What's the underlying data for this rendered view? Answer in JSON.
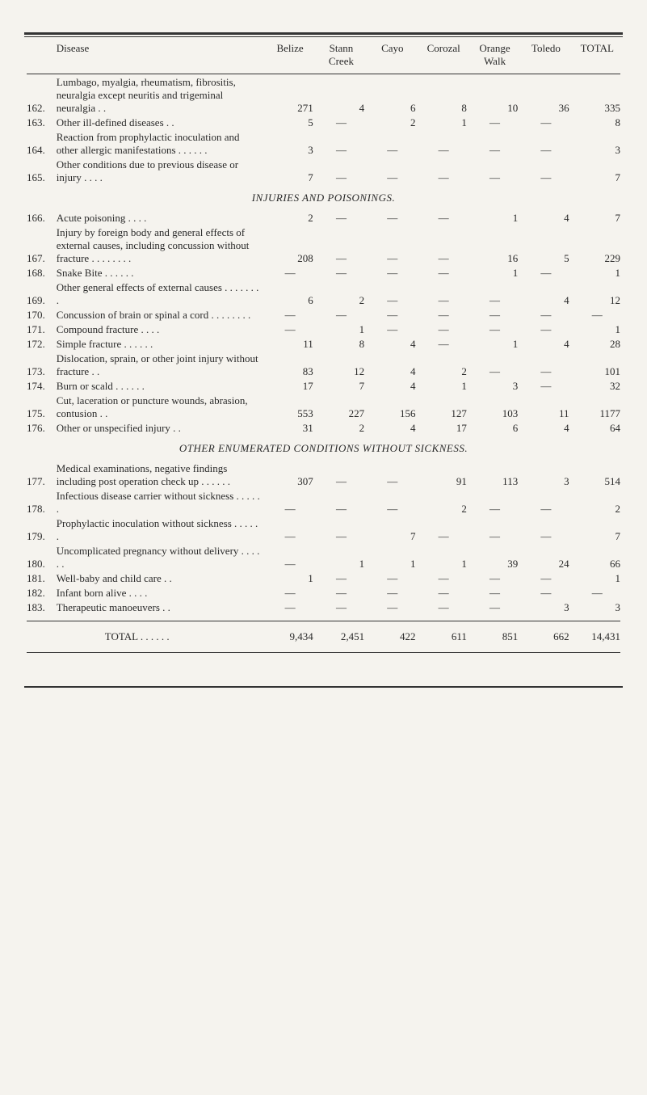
{
  "header": {
    "disease": "Disease",
    "belize": "Belize",
    "stann": "Stann Creek",
    "cayo": "Cayo",
    "corozal": "Corozal",
    "orange": "Orange Walk",
    "toledo": "Toledo",
    "total": "TOTAL"
  },
  "sections": {
    "injuries": "INJURIES AND POISONINGS.",
    "other": "OTHER ENUMERATED CONDITIONS WITHOUT SICKNESS."
  },
  "rows": [
    {
      "n": "162.",
      "d": "Lumbago, myalgia, rheumatism, fibrositis, neuralgia except neuritis and trigeminal neuralgia  . .",
      "v": [
        "271",
        "4",
        "6",
        "8",
        "10",
        "36",
        "335"
      ]
    },
    {
      "n": "163.",
      "d": "Other ill-defined diseases      . .",
      "v": [
        "5",
        "—",
        "2",
        "1",
        "—",
        "—",
        "8"
      ]
    },
    {
      "n": "164.",
      "d": "Reaction from prophylactic inoculation and other allergic manifestations        . .      . .      . .",
      "v": [
        "3",
        "—",
        "—",
        "—",
        "—",
        "—",
        "3"
      ]
    },
    {
      "n": "165.",
      "d": "Other conditions due to previous disease or injury        . .     . .",
      "v": [
        "7",
        "—",
        "—",
        "—",
        "—",
        "—",
        "7"
      ]
    },
    {
      "n": "166.",
      "d": "Acute poisoning        . .     . .",
      "v": [
        "2",
        "—",
        "—",
        "—",
        "1",
        "4",
        "7"
      ]
    },
    {
      "n": "167.",
      "d": "Injury by foreign body and general effects of external causes, including concussion without fracture . .     . .     . .     . .",
      "v": [
        "208",
        "—",
        "—",
        "—",
        "16",
        "5",
        "229"
      ]
    },
    {
      "n": "168.",
      "d": "Snake Bite        . .     . .     . .",
      "v": [
        "—",
        "—",
        "—",
        "—",
        "1",
        "—",
        "1"
      ]
    },
    {
      "n": "169.",
      "d": "Other general effects of external causes    . .     . .     . .     . .",
      "v": [
        "6",
        "2",
        "—",
        "—",
        "—",
        "4",
        "12"
      ]
    },
    {
      "n": "170.",
      "d": "Concussion of brain or spinal      a cord        . .     . .     . .     . .",
      "v": [
        "—",
        "—",
        "—",
        "—",
        "—",
        "—",
        "—"
      ]
    },
    {
      "n": "171.",
      "d": "Compound fracture     . .     . .",
      "v": [
        "—",
        "1",
        "—",
        "—",
        "—",
        "—",
        "1"
      ]
    },
    {
      "n": "172.",
      "d": "Simple fracture . .     . .     . .",
      "v": [
        "11",
        "8",
        "4",
        "—",
        "1",
        "4",
        "28"
      ]
    },
    {
      "n": "173.",
      "d": "Dislocation, sprain, or other joint injury without fracture  . .",
      "v": [
        "83",
        "12",
        "4",
        "2",
        "—",
        "—",
        "101"
      ]
    },
    {
      "n": "174.",
      "d": "Burn or scald   . .     . .     . .",
      "v": [
        "17",
        "7",
        "4",
        "1",
        "3",
        "—",
        "32"
      ]
    },
    {
      "n": "175.",
      "d": "Cut, laceration or puncture wounds, abrasion, contusion . .",
      "v": [
        "553",
        "227",
        "156",
        "127",
        "103",
        "11",
        "1177"
      ]
    },
    {
      "n": "176.",
      "d": "Other or unspecified injury   . .",
      "v": [
        "31",
        "2",
        "4",
        "17",
        "6",
        "4",
        "64"
      ]
    },
    {
      "n": "177.",
      "d": "Medical examinations, negative findings including post operation check up   . .     . .     . .",
      "v": [
        "307",
        "—",
        "—",
        "91",
        "113",
        "3",
        "514"
      ]
    },
    {
      "n": "178.",
      "d": "Infectious disease carrier without sickness       . .     . .     . .",
      "v": [
        "—",
        "—",
        "—",
        "2",
        "—",
        "—",
        "2"
      ]
    },
    {
      "n": "179.",
      "d": "Prophylactic inoculation without sickness       . .     . .     . .",
      "v": [
        "—",
        "—",
        "7",
        "—",
        "—",
        "—",
        "7"
      ]
    },
    {
      "n": "180.",
      "d": "Uncomplicated pregnancy without delivery       . .     . .     . .",
      "v": [
        "—",
        "1",
        "1",
        "1",
        "39",
        "24",
        "66"
      ]
    },
    {
      "n": "181.",
      "d": "Well-baby and child care       . .",
      "v": [
        "1",
        "—",
        "—",
        "—",
        "—",
        "—",
        "1"
      ]
    },
    {
      "n": "182.",
      "d": "Infant born alive        . .     . .",
      "v": [
        "—",
        "—",
        "—",
        "—",
        "—",
        "—",
        "—"
      ]
    },
    {
      "n": "183.",
      "d": "Therapeutic manoeuvers       . .",
      "v": [
        "—",
        "—",
        "—",
        "—",
        "—",
        "3",
        "3"
      ]
    }
  ],
  "totalRow": {
    "label": "TOTAL . .     . .     . .",
    "v": [
      "9,434",
      "2,451",
      "422",
      "611",
      "851",
      "662",
      "14,431"
    ]
  }
}
